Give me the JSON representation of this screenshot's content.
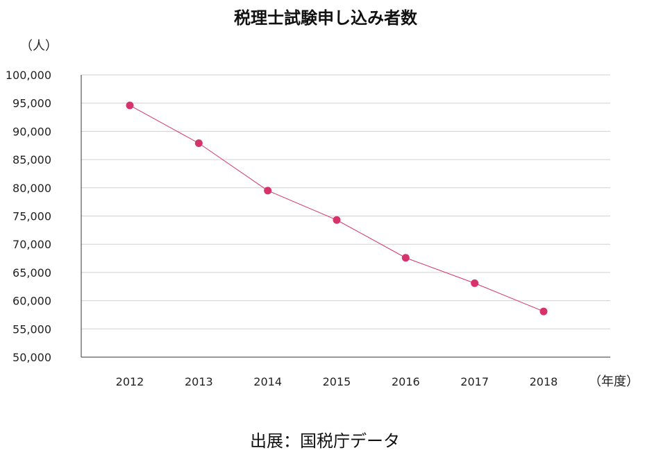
{
  "chart_data": {
    "type": "line",
    "title": "税理士試験申し込み者数",
    "ylabel": "（人）",
    "xlabel": "（年度）",
    "categories": [
      "2012",
      "2013",
      "2014",
      "2015",
      "2016",
      "2017",
      "2018"
    ],
    "series": [
      {
        "values": [
          94600,
          87900,
          79500,
          74300,
          67600,
          63100,
          58100
        ]
      }
    ],
    "ylim": [
      50000,
      100000
    ],
    "yticks": [
      "50,000",
      "55,000",
      "60,000",
      "65,000",
      "70,000",
      "75,000",
      "80,000",
      "85,000",
      "90,000",
      "95,000",
      "100,000"
    ],
    "grid": true,
    "colors": {
      "line": "#d6336c",
      "marker": "#d6336c"
    }
  },
  "source": "出展：国税庁データ"
}
